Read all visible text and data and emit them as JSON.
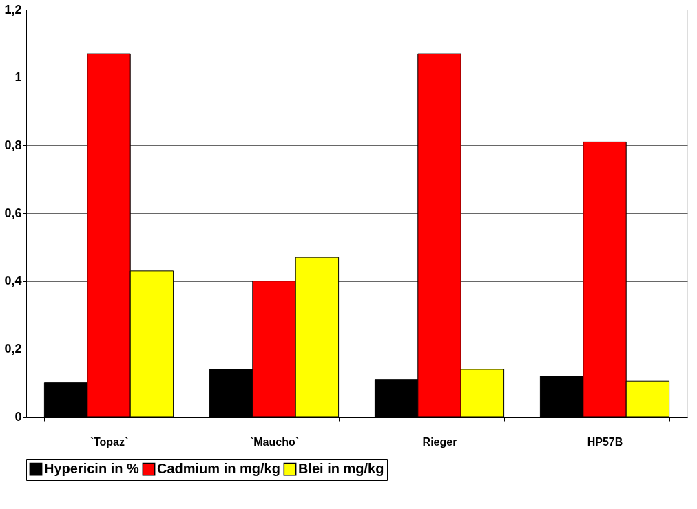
{
  "chart_data": {
    "type": "bar",
    "categories": [
      "`Topaz`",
      "`Maucho`",
      "Rieger",
      "HP57B"
    ],
    "series": [
      {
        "name": "Hypericin in %",
        "color": "#000000",
        "values": [
          0.1,
          0.14,
          0.11,
          0.12
        ]
      },
      {
        "name": "Cadmium in mg/kg",
        "color": "#ff0000",
        "values": [
          1.07,
          0.4,
          1.07,
          0.81
        ]
      },
      {
        "name": "Blei in mg/kg",
        "color": "#ffff00",
        "values": [
          0.43,
          0.47,
          0.14,
          0.105
        ]
      }
    ],
    "ylim": [
      0,
      1.2
    ],
    "yticks": [
      {
        "value": 0,
        "label": "0"
      },
      {
        "value": 0.2,
        "label": "0,2"
      },
      {
        "value": 0.4,
        "label": "0,4"
      },
      {
        "value": 0.6,
        "label": "0,6"
      },
      {
        "value": 0.8,
        "label": "0,8"
      },
      {
        "value": 1,
        "label": "1"
      },
      {
        "value": 1.2,
        "label": "1,2"
      }
    ],
    "grid": "y",
    "legend": "bottom"
  }
}
